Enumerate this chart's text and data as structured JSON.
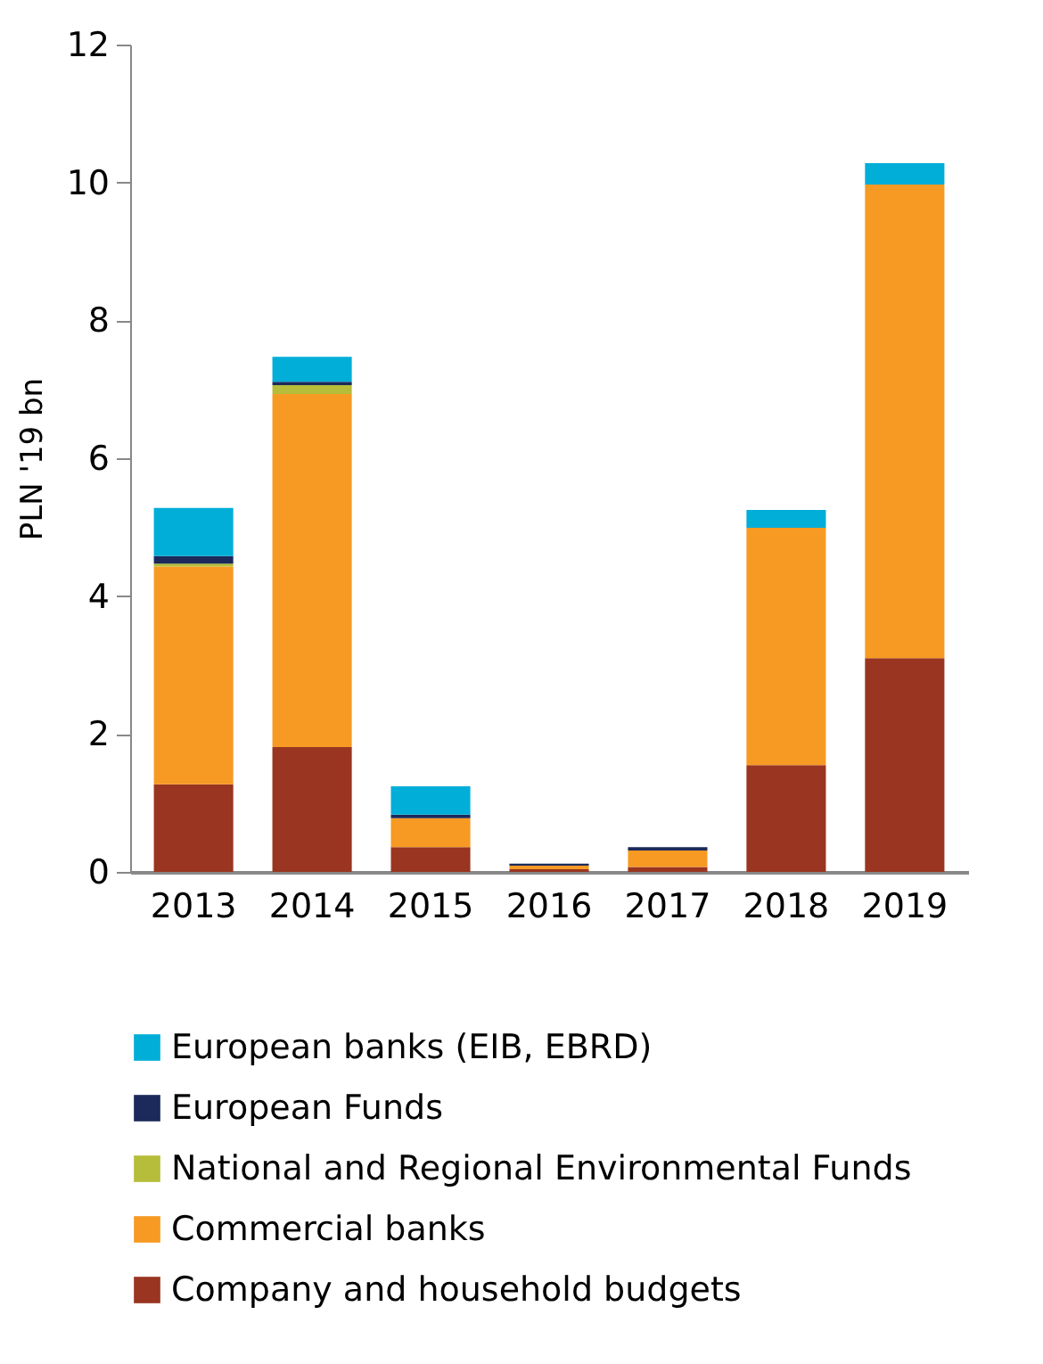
{
  "chart_data": {
    "type": "bar",
    "stacked": true,
    "ylabel": "PLN '19 bn",
    "categories": [
      "2013",
      "2014",
      "2015",
      "2016",
      "2017",
      "2018",
      "2019"
    ],
    "series": [
      {
        "name": "Company and household budgets",
        "color": "#993520",
        "values": [
          1.27,
          1.81,
          0.36,
          0.04,
          0.07,
          1.55,
          3.1
        ]
      },
      {
        "name": "Commercial banks",
        "color": "#f79a23",
        "values": [
          3.16,
          5.12,
          0.42,
          0.05,
          0.24,
          3.44,
          6.87
        ]
      },
      {
        "name": "National and Regional Environmental Funds",
        "color": "#b5bd3a",
        "values": [
          0.04,
          0.13,
          0,
          0,
          0,
          0,
          0
        ]
      },
      {
        "name": "European Funds",
        "color": "#1b2a5a",
        "values": [
          0.11,
          0.05,
          0.05,
          0.03,
          0.05,
          0,
          0
        ]
      },
      {
        "name": "European banks (EIB, EBRD)",
        "color": "#00aed8",
        "values": [
          0.7,
          0.36,
          0.41,
          0,
          0,
          0.26,
          0.31
        ]
      }
    ],
    "ylim": [
      0,
      12
    ],
    "yticks": [
      0,
      2,
      4,
      6,
      8,
      10,
      12
    ],
    "grid": false,
    "legend": "bottom"
  }
}
